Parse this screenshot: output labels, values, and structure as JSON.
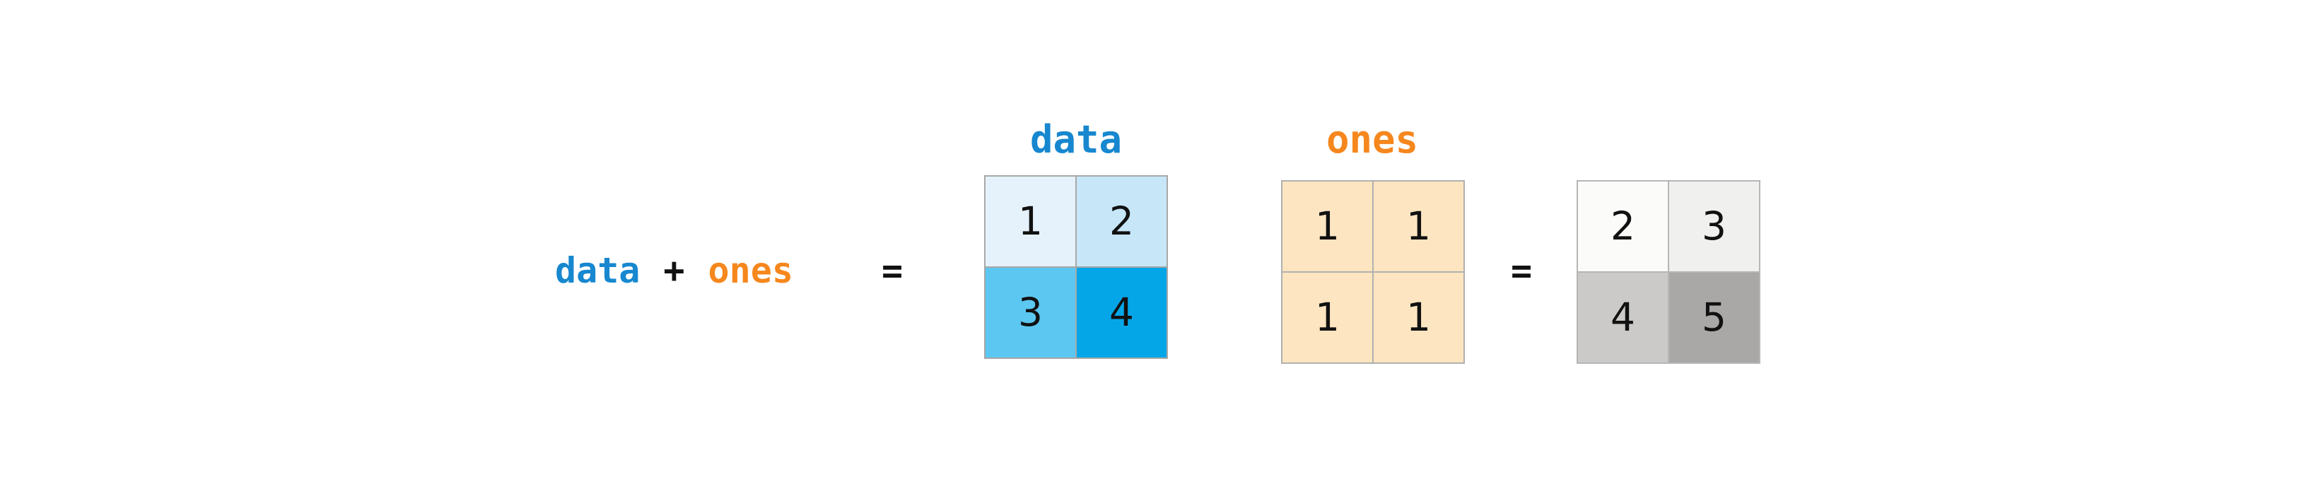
{
  "expression": {
    "left_operand": "data",
    "operator": "+",
    "right_operand": "ones",
    "equals": "="
  },
  "result": {
    "equals": "="
  },
  "colors": {
    "data_blue": "#1787cf",
    "ones_orange": "#f6871d",
    "operator_black": "#111111",
    "number_text": "#111111",
    "background": "#ffffff"
  },
  "matrices": {
    "data": {
      "label": "data",
      "rows": 2,
      "cols": 2,
      "border_color": "#a8a8a8",
      "cells": [
        {
          "value": "1",
          "bg": "#e5f2fb"
        },
        {
          "value": "2",
          "bg": "#c7e7f8"
        },
        {
          "value": "3",
          "bg": "#5cc7f1"
        },
        {
          "value": "4",
          "bg": "#05a6e8"
        }
      ]
    },
    "ones": {
      "label": "ones",
      "rows": 2,
      "cols": 2,
      "border_color": "#b0b0b0",
      "cells": [
        {
          "value": "1",
          "bg": "#fce5c0"
        },
        {
          "value": "1",
          "bg": "#fce5c0"
        },
        {
          "value": "1",
          "bg": "#fce5c0"
        },
        {
          "value": "1",
          "bg": "#fce5c0"
        }
      ]
    },
    "result": {
      "label": "",
      "rows": 2,
      "cols": 2,
      "border_color": "#b6b6b6",
      "cells": [
        {
          "value": "2",
          "bg": "#fbfbfa"
        },
        {
          "value": "3",
          "bg": "#f0f0ee"
        },
        {
          "value": "4",
          "bg": "#cbcac9"
        },
        {
          "value": "5",
          "bg": "#a9a8a7"
        }
      ]
    }
  }
}
